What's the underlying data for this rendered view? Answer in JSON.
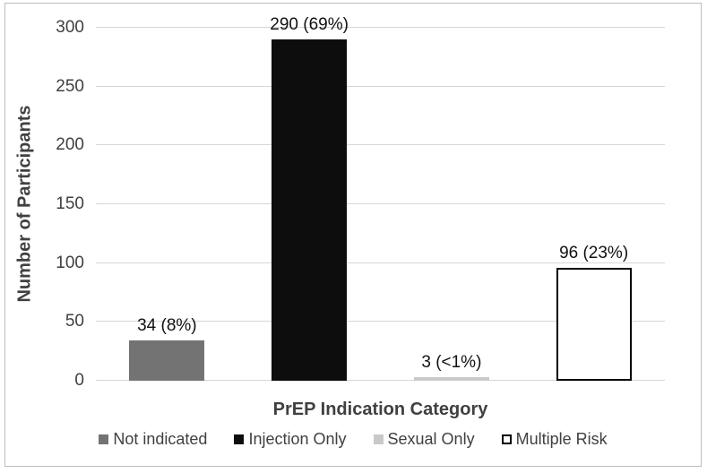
{
  "chart_data": {
    "type": "bar",
    "title": "",
    "xlabel": "PrEP Indication Category",
    "ylabel": "Number of Participants",
    "ylim": [
      0,
      300
    ],
    "yticks": [
      0,
      50,
      100,
      150,
      200,
      250,
      300
    ],
    "grid": true,
    "legend_position": "bottom",
    "categories": [
      "Not indicated",
      "Injection Only",
      "Sexual Only",
      "Multiple Risk"
    ],
    "values": [
      34,
      290,
      3,
      96
    ],
    "bars": [
      {
        "category": "Not indicated",
        "value": 34,
        "label": "34 (8%)",
        "fill": "#737373",
        "border": "#737373"
      },
      {
        "category": "Injection Only",
        "value": 290,
        "label": "290 (69%)",
        "fill": "#0d0d0d",
        "border": "#0d0d0d"
      },
      {
        "category": "Sexual Only",
        "value": 3,
        "label": "3 (<1%)",
        "fill": "#c9c9c9",
        "border": "#c9c9c9"
      },
      {
        "category": "Multiple Risk",
        "value": 96,
        "label": "96 (23%)",
        "fill": "#ffffff",
        "border": "#000000"
      }
    ]
  },
  "colors": {
    "gridline": "#d6d6d6",
    "axis_text": "#404040",
    "data_label": "#111111",
    "chart_border": "#bdbdbd",
    "background": "#ffffff"
  }
}
